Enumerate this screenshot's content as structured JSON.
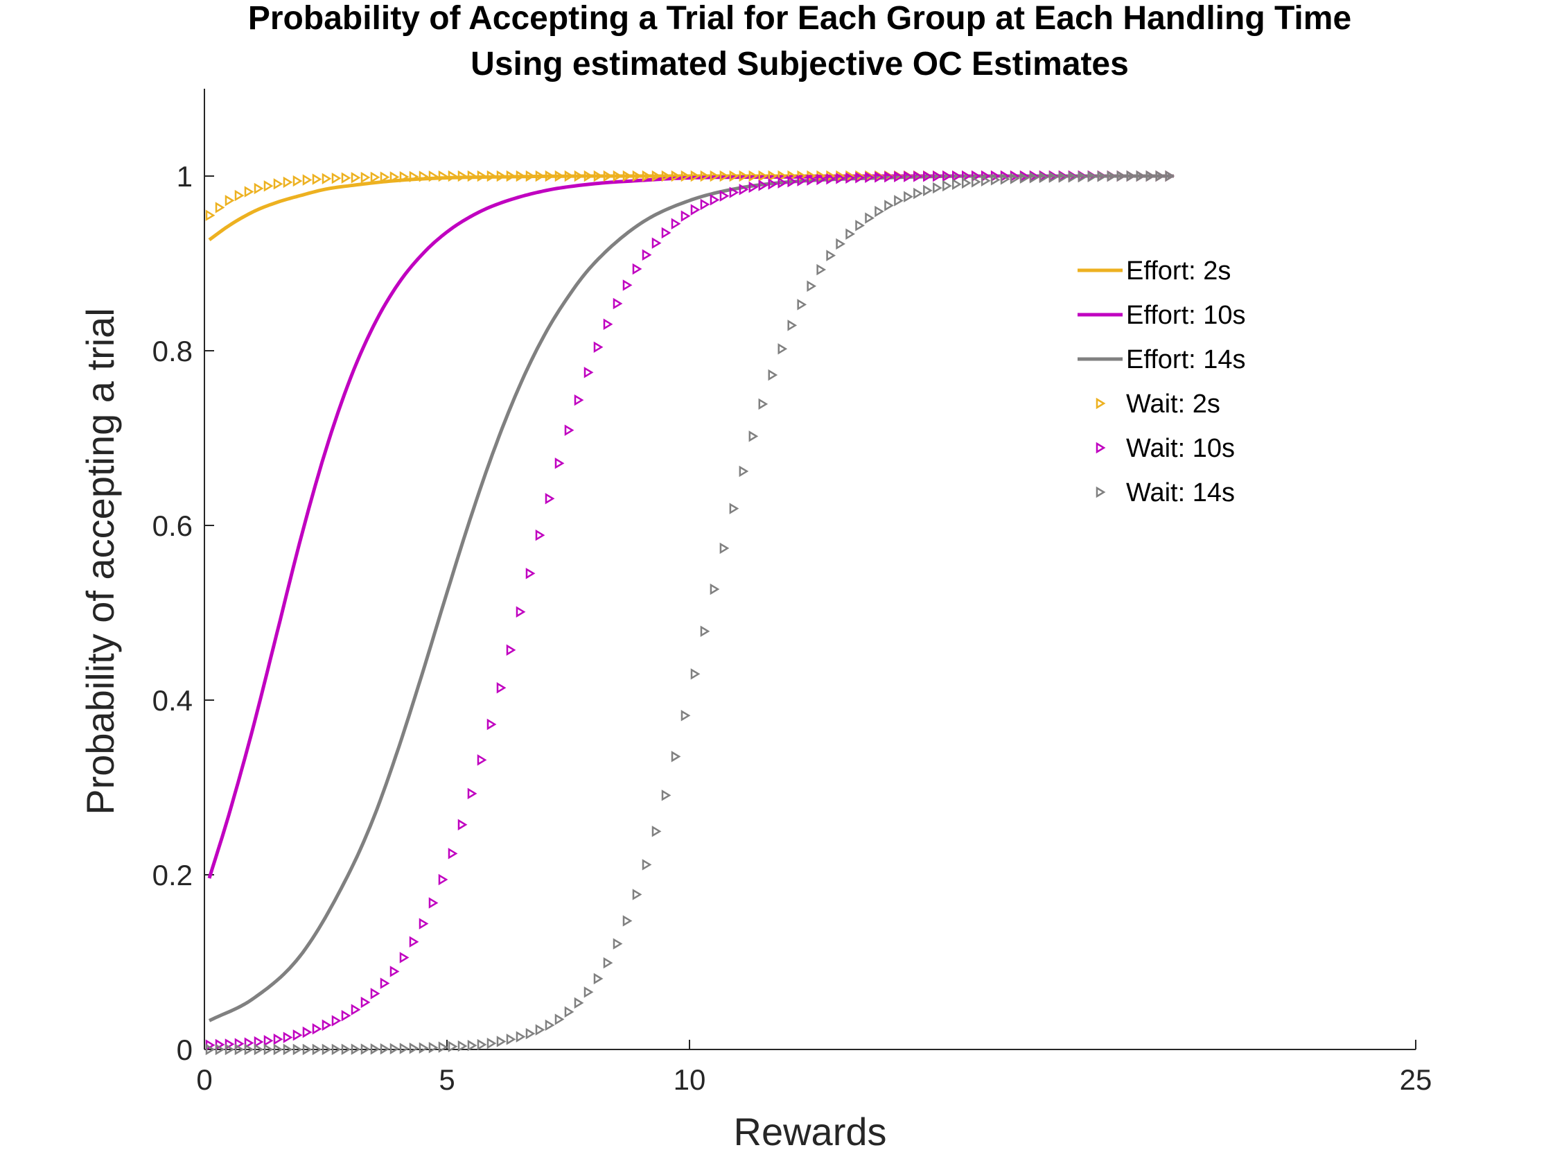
{
  "chart_data": {
    "type": "line",
    "title": [
      "Probability of Accepting a Trial for Each Group at Each Handling Time",
      "Using estimated Subjective OC Estimates"
    ],
    "xlabel": "Rewards",
    "ylabel": "Probability of accepting a trial",
    "xlim": [
      0,
      25
    ],
    "ylim": [
      0,
      1.1
    ],
    "x_ticks": [
      {
        "value": 0,
        "label": "0"
      },
      {
        "value": 5,
        "label": "5"
      },
      {
        "value": 10,
        "label": "10"
      },
      {
        "value": 25,
        "label": "25"
      }
    ],
    "y_ticks": [
      {
        "value": 0,
        "label": "0"
      },
      {
        "value": 0.2,
        "label": "0.2"
      },
      {
        "value": 0.4,
        "label": "0.4"
      },
      {
        "value": 0.6,
        "label": "0.6"
      },
      {
        "value": 0.8,
        "label": "0.8"
      },
      {
        "value": 1,
        "label": "1"
      }
    ],
    "legend_position": "right, upper-middle",
    "series": [
      {
        "name": "Effort: 2s",
        "style": "line",
        "color": "#EDB120",
        "x": [
          0.1,
          0.5,
          1,
          1.5,
          2,
          2.5,
          3,
          4,
          5,
          6,
          8,
          10,
          12,
          14,
          16,
          18,
          20
        ],
        "y": [
          0.927,
          0.943,
          0.959,
          0.97,
          0.978,
          0.985,
          0.989,
          0.995,
          0.998,
          0.999,
          1.0,
          1.0,
          1.0,
          1.0,
          1.0,
          1.0,
          1.0
        ]
      },
      {
        "name": "Effort: 10s",
        "style": "line",
        "color": "#C000C0",
        "x": [
          0.1,
          0.5,
          1,
          1.5,
          2,
          2.5,
          3,
          3.5,
          4,
          4.5,
          5,
          5.5,
          6,
          7,
          8,
          9,
          10,
          12,
          14,
          16,
          18,
          20
        ],
        "y": [
          0.196,
          0.268,
          0.368,
          0.478,
          0.588,
          0.686,
          0.767,
          0.83,
          0.877,
          0.911,
          0.936,
          0.954,
          0.967,
          0.983,
          0.991,
          0.995,
          0.998,
          0.999,
          1.0,
          1.0,
          1.0,
          1.0
        ]
      },
      {
        "name": "Effort: 14s",
        "style": "line",
        "color": "#808080",
        "x": [
          0.1,
          1,
          2,
          3,
          3.5,
          4,
          4.5,
          5,
          5.5,
          6,
          6.5,
          7,
          7.5,
          8,
          9,
          10,
          11,
          12,
          14,
          16,
          18,
          20
        ],
        "y": [
          0.033,
          0.058,
          0.109,
          0.204,
          0.267,
          0.345,
          0.432,
          0.523,
          0.611,
          0.691,
          0.76,
          0.817,
          0.862,
          0.898,
          0.946,
          0.972,
          0.986,
          0.993,
          0.998,
          1.0,
          1.0,
          1.0
        ]
      },
      {
        "name": "Wait: 2s",
        "style": "markers",
        "marker": "triangle-right",
        "color": "#EDB120",
        "x": [
          0.1,
          0.5,
          1,
          1.5,
          2,
          2.5,
          3,
          4,
          5,
          6,
          7,
          8,
          10,
          12,
          14,
          16,
          18,
          20
        ],
        "y": [
          0.955,
          0.972,
          0.984,
          0.991,
          0.995,
          0.997,
          0.998,
          0.999,
          1.0,
          1.0,
          1.0,
          1.0,
          1.0,
          1.0,
          1.0,
          1.0,
          1.0,
          1.0
        ]
      },
      {
        "name": "Wait: 10s",
        "style": "markers",
        "marker": "triangle-right",
        "color": "#C000C0",
        "x": [
          0.1,
          1,
          2,
          3,
          3.5,
          4,
          4.5,
          5,
          5.5,
          6,
          6.5,
          7,
          7.5,
          8,
          8.5,
          9,
          9.5,
          10,
          11,
          12,
          13,
          14,
          16,
          18,
          20
        ],
        "y": [
          0.005,
          0.008,
          0.018,
          0.042,
          0.064,
          0.097,
          0.144,
          0.209,
          0.293,
          0.393,
          0.501,
          0.61,
          0.709,
          0.79,
          0.854,
          0.902,
          0.935,
          0.958,
          0.983,
          0.993,
          0.997,
          0.999,
          1.0,
          1.0,
          1.0
        ]
      },
      {
        "name": "Wait: 14s",
        "style": "markers",
        "marker": "triangle-right",
        "color": "#808080",
        "x": [
          0.1,
          2,
          4,
          5,
          6,
          7,
          7.5,
          8,
          8.5,
          9,
          9.5,
          10,
          10.5,
          11,
          11.5,
          12,
          12.5,
          13,
          14,
          15,
          16,
          17,
          18,
          19,
          20
        ],
        "y": [
          0.0,
          0.0,
          0.001,
          0.003,
          0.008,
          0.025,
          0.043,
          0.073,
          0.121,
          0.194,
          0.291,
          0.406,
          0.527,
          0.641,
          0.739,
          0.816,
          0.874,
          0.916,
          0.963,
          0.985,
          0.994,
          0.998,
          0.999,
          1.0,
          1.0
        ]
      }
    ]
  }
}
